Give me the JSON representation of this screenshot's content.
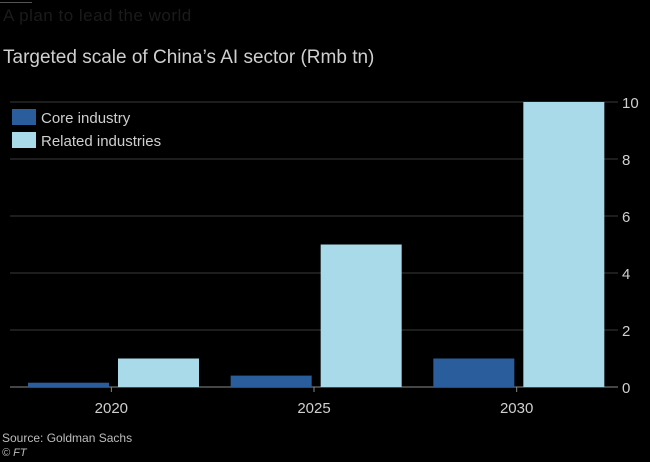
{
  "header": {
    "headline": "A plan to lead the world",
    "title": "Targeted scale of China’s AI sector (Rmb tn)"
  },
  "footer": {
    "source": "Source: Goldman Sachs",
    "credit": "© FT"
  },
  "chart_data": {
    "type": "bar",
    "title": "Targeted scale of China’s AI sector (Rmb tn)",
    "categories": [
      "2020",
      "2025",
      "2030"
    ],
    "series": [
      {
        "name": "Core industry",
        "values": [
          0.15,
          0.4,
          1.0
        ],
        "color": "#2a5d9c"
      },
      {
        "name": "Related industries",
        "values": [
          1.0,
          5.0,
          10.0
        ],
        "color": "#a8daea"
      }
    ],
    "ylim": [
      0,
      10
    ],
    "yticks": [
      "0",
      "2",
      "4",
      "6",
      "8",
      "10"
    ],
    "y_axis_position": "right",
    "grid": true,
    "legend_position": "top-left",
    "colors": {
      "background": "#000000",
      "grid": "#3a3a3a",
      "text": "#cfcfcf"
    }
  }
}
